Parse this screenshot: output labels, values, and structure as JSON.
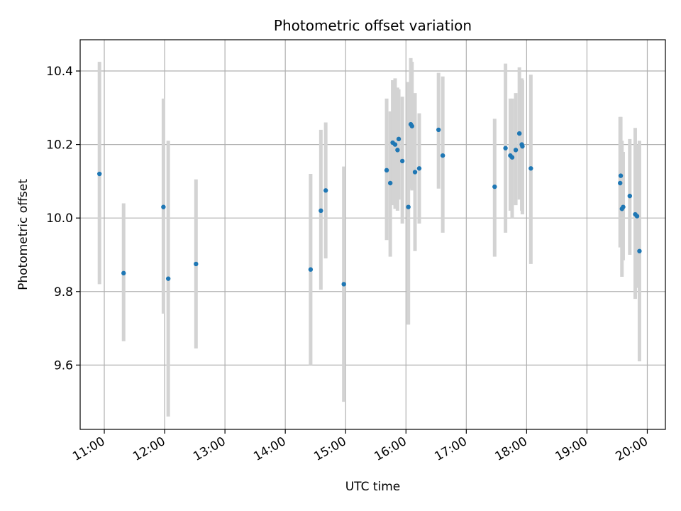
{
  "chart_data": {
    "type": "scatter",
    "title": "Photometric offset variation",
    "xlabel": "UTC time",
    "ylabel": "Photometric offset",
    "x_unit": "hours (UTC)",
    "xlim": [
      10.6,
      20.3
    ],
    "ylim": [
      9.425,
      10.485
    ],
    "grid": true,
    "x_ticks": [
      {
        "value": 11,
        "label": "11:00"
      },
      {
        "value": 12,
        "label": "12:00"
      },
      {
        "value": 13,
        "label": "13:00"
      },
      {
        "value": 14,
        "label": "14:00"
      },
      {
        "value": 15,
        "label": "15:00"
      },
      {
        "value": 16,
        "label": "16:00"
      },
      {
        "value": 17,
        "label": "17:00"
      },
      {
        "value": 18,
        "label": "18:00"
      },
      {
        "value": 19,
        "label": "19:00"
      },
      {
        "value": 20,
        "label": "20:00"
      }
    ],
    "y_ticks": [
      {
        "value": 9.6,
        "label": "9.6"
      },
      {
        "value": 9.8,
        "label": "9.8"
      },
      {
        "value": 10.0,
        "label": "10.0"
      },
      {
        "value": 10.2,
        "label": "10.2"
      },
      {
        "value": 10.4,
        "label": "10.4"
      }
    ],
    "marker_color": "#1f77b4",
    "errorbar_color": "#d3d3d3",
    "points": [
      {
        "t": 10.92,
        "y": 10.12,
        "lo": 9.82,
        "hi": 10.425
      },
      {
        "t": 11.32,
        "y": 9.85,
        "lo": 9.665,
        "hi": 10.04
      },
      {
        "t": 11.98,
        "y": 10.03,
        "lo": 9.74,
        "hi": 10.325
      },
      {
        "t": 12.06,
        "y": 9.835,
        "lo": 9.46,
        "hi": 10.21
      },
      {
        "t": 12.52,
        "y": 9.875,
        "lo": 9.645,
        "hi": 10.105
      },
      {
        "t": 14.42,
        "y": 9.86,
        "lo": 9.6,
        "hi": 10.12
      },
      {
        "t": 14.59,
        "y": 10.02,
        "lo": 9.805,
        "hi": 10.24
      },
      {
        "t": 14.67,
        "y": 10.075,
        "lo": 9.89,
        "hi": 10.26
      },
      {
        "t": 14.97,
        "y": 9.82,
        "lo": 9.5,
        "hi": 10.14
      },
      {
        "t": 15.68,
        "y": 10.13,
        "lo": 9.94,
        "hi": 10.325
      },
      {
        "t": 15.74,
        "y": 10.095,
        "lo": 9.895,
        "hi": 10.29
      },
      {
        "t": 15.78,
        "y": 10.205,
        "lo": 10.035,
        "hi": 10.375
      },
      {
        "t": 15.82,
        "y": 10.2,
        "lo": 10.025,
        "hi": 10.38
      },
      {
        "t": 15.86,
        "y": 10.185,
        "lo": 10.02,
        "hi": 10.355
      },
      {
        "t": 15.88,
        "y": 10.215,
        "lo": 10.05,
        "hi": 10.35
      },
      {
        "t": 15.94,
        "y": 10.155,
        "lo": 9.985,
        "hi": 10.33
      },
      {
        "t": 16.04,
        "y": 10.03,
        "lo": 9.71,
        "hi": 10.37
      },
      {
        "t": 16.08,
        "y": 10.255,
        "lo": 10.08,
        "hi": 10.435
      },
      {
        "t": 16.1,
        "y": 10.25,
        "lo": 10.075,
        "hi": 10.425
      },
      {
        "t": 16.15,
        "y": 10.125,
        "lo": 9.91,
        "hi": 10.34
      },
      {
        "t": 16.22,
        "y": 10.135,
        "lo": 9.985,
        "hi": 10.285
      },
      {
        "t": 16.54,
        "y": 10.24,
        "lo": 10.08,
        "hi": 10.395
      },
      {
        "t": 16.61,
        "y": 10.17,
        "lo": 9.96,
        "hi": 10.385
      },
      {
        "t": 17.47,
        "y": 10.085,
        "lo": 9.895,
        "hi": 10.27
      },
      {
        "t": 17.65,
        "y": 10.19,
        "lo": 9.96,
        "hi": 10.42
      },
      {
        "t": 17.73,
        "y": 10.17,
        "lo": 10.02,
        "hi": 10.325
      },
      {
        "t": 17.76,
        "y": 10.165,
        "lo": 10.0,
        "hi": 10.325
      },
      {
        "t": 17.82,
        "y": 10.185,
        "lo": 10.035,
        "hi": 10.34
      },
      {
        "t": 17.88,
        "y": 10.23,
        "lo": 10.05,
        "hi": 10.41
      },
      {
        "t": 17.92,
        "y": 10.2,
        "lo": 10.02,
        "hi": 10.38
      },
      {
        "t": 17.93,
        "y": 10.195,
        "lo": 10.01,
        "hi": 10.375
      },
      {
        "t": 18.07,
        "y": 10.135,
        "lo": 9.875,
        "hi": 10.39
      },
      {
        "t": 19.55,
        "y": 10.095,
        "lo": 9.92,
        "hi": 10.275
      },
      {
        "t": 19.56,
        "y": 10.115,
        "lo": 9.95,
        "hi": 10.275
      },
      {
        "t": 19.58,
        "y": 10.025,
        "lo": 9.84,
        "hi": 10.21
      },
      {
        "t": 19.6,
        "y": 10.03,
        "lo": 9.885,
        "hi": 10.18
      },
      {
        "t": 19.71,
        "y": 10.06,
        "lo": 9.9,
        "hi": 10.215
      },
      {
        "t": 19.8,
        "y": 10.01,
        "lo": 9.78,
        "hi": 10.245
      },
      {
        "t": 19.83,
        "y": 10.005,
        "lo": 9.81,
        "hi": 10.2
      },
      {
        "t": 19.87,
        "y": 9.91,
        "lo": 9.61,
        "hi": 10.21
      }
    ]
  }
}
